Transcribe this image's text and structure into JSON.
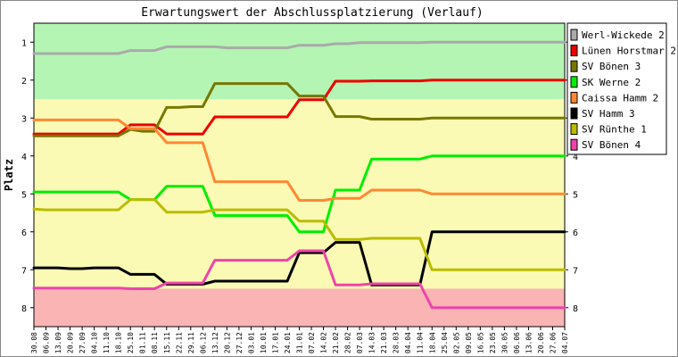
{
  "chart_data": {
    "type": "line",
    "title": "Erwartungswert der Abschlussplatzierung (Verlauf)",
    "ylabel": "Platz",
    "xlabel": "",
    "ylim": [
      0.5,
      8.5
    ],
    "y_inverted": true,
    "yticks": [
      1,
      2,
      3,
      4,
      5,
      6,
      7,
      8
    ],
    "grid": false,
    "legend_position": "right",
    "zones": [
      {
        "from": 0.5,
        "to": 2.5,
        "color": "#b4f5b4"
      },
      {
        "from": 2.5,
        "to": 7.5,
        "color": "#fafab4"
      },
      {
        "from": 7.5,
        "to": 8.5,
        "color": "#fab4b4"
      }
    ],
    "x": [
      "30.08",
      "06.09",
      "13.09",
      "20.09",
      "27.09",
      "04.10",
      "11.10",
      "18.10",
      "25.10",
      "01.11",
      "08.11",
      "15.11",
      "22.11",
      "29.11",
      "06.12",
      "13.12",
      "20.12",
      "27.12",
      "03.01",
      "10.01",
      "17.01",
      "24.01",
      "31.01",
      "07.02",
      "14.02",
      "21.02",
      "28.02",
      "07.03",
      "14.03",
      "21.03",
      "28.03",
      "04.04",
      "11.04",
      "18.04",
      "25.04",
      "02.05",
      "09.05",
      "16.05",
      "23.05",
      "30.05",
      "06.06",
      "13.06",
      "20.06",
      "27.06",
      "04.07"
    ],
    "series": [
      {
        "name": "Werl-Wickede 2",
        "color": "#aaaaaa",
        "values": [
          1.3,
          1.3,
          1.3,
          1.3,
          1.3,
          1.3,
          1.3,
          1.3,
          1.22,
          1.22,
          1.22,
          1.12,
          1.12,
          1.12,
          1.12,
          1.12,
          1.15,
          1.15,
          1.15,
          1.15,
          1.15,
          1.15,
          1.08,
          1.08,
          1.08,
          1.04,
          1.04,
          1.01,
          1.01,
          1.01,
          1.01,
          1.01,
          1.01,
          1.0,
          1.0,
          1.0,
          1.0,
          1.0,
          1.0,
          1.0,
          1.0,
          1.0,
          1.0,
          1.0,
          1.0
        ]
      },
      {
        "name": "Lünen Horstmar 2",
        "color": "#ee0000",
        "values": [
          3.42,
          3.42,
          3.42,
          3.42,
          3.42,
          3.42,
          3.42,
          3.42,
          3.18,
          3.18,
          3.18,
          3.42,
          3.42,
          3.42,
          3.42,
          2.97,
          2.97,
          2.97,
          2.97,
          2.97,
          2.97,
          2.97,
          2.52,
          2.52,
          2.52,
          2.03,
          2.03,
          2.03,
          2.02,
          2.02,
          2.02,
          2.02,
          2.02,
          2.0,
          2.0,
          2.0,
          2.0,
          2.0,
          2.0,
          2.0,
          2.0,
          2.0,
          2.0,
          2.0,
          2.0
        ]
      },
      {
        "name": "SV Bönen 3",
        "color": "#777700",
        "values": [
          3.47,
          3.47,
          3.47,
          3.47,
          3.47,
          3.47,
          3.47,
          3.47,
          3.3,
          3.35,
          3.35,
          2.72,
          2.72,
          2.7,
          2.7,
          2.09,
          2.09,
          2.09,
          2.09,
          2.09,
          2.09,
          2.09,
          2.42,
          2.42,
          2.42,
          2.96,
          2.96,
          2.96,
          3.03,
          3.03,
          3.03,
          3.03,
          3.03,
          3.0,
          3.0,
          3.0,
          3.0,
          3.0,
          3.0,
          3.0,
          3.0,
          3.0,
          3.0,
          3.0,
          3.0
        ]
      },
      {
        "name": "SK Werne 2",
        "color": "#00ee00",
        "values": [
          4.95,
          4.95,
          4.95,
          4.95,
          4.95,
          4.95,
          4.95,
          4.95,
          5.15,
          5.15,
          5.15,
          4.8,
          4.8,
          4.8,
          4.8,
          5.57,
          5.57,
          5.57,
          5.57,
          5.57,
          5.57,
          5.57,
          6.0,
          6.0,
          6.0,
          4.9,
          4.9,
          4.9,
          4.08,
          4.08,
          4.08,
          4.08,
          4.08,
          4.0,
          4.0,
          4.0,
          4.0,
          4.0,
          4.0,
          4.0,
          4.0,
          4.0,
          4.0,
          4.0,
          4.0
        ]
      },
      {
        "name": "Caissa Hamm 2",
        "color": "#ff8833",
        "values": [
          3.05,
          3.05,
          3.05,
          3.05,
          3.05,
          3.05,
          3.05,
          3.05,
          3.28,
          3.28,
          3.28,
          3.65,
          3.65,
          3.65,
          3.65,
          4.68,
          4.68,
          4.68,
          4.68,
          4.68,
          4.68,
          4.68,
          5.17,
          5.17,
          5.17,
          5.12,
          5.12,
          5.12,
          4.9,
          4.9,
          4.9,
          4.9,
          4.9,
          5.0,
          5.0,
          5.0,
          5.0,
          5.0,
          5.0,
          5.0,
          5.0,
          5.0,
          5.0,
          5.0,
          5.0
        ]
      },
      {
        "name": "SV Hamm 3",
        "color": "#000000",
        "values": [
          6.95,
          6.95,
          6.95,
          6.97,
          6.97,
          6.95,
          6.95,
          6.95,
          7.12,
          7.12,
          7.12,
          7.38,
          7.38,
          7.38,
          7.38,
          7.3,
          7.3,
          7.3,
          7.3,
          7.3,
          7.3,
          7.3,
          6.55,
          6.55,
          6.55,
          6.28,
          6.28,
          6.28,
          7.4,
          7.4,
          7.4,
          7.4,
          7.4,
          6.0,
          6.0,
          6.0,
          6.0,
          6.0,
          6.0,
          6.0,
          6.0,
          6.0,
          6.0,
          6.0,
          6.0
        ]
      },
      {
        "name": "SV Rünthe 1",
        "color": "#bbbb00",
        "values": [
          5.4,
          5.42,
          5.42,
          5.42,
          5.42,
          5.42,
          5.42,
          5.42,
          5.15,
          5.15,
          5.15,
          5.48,
          5.48,
          5.48,
          5.48,
          5.42,
          5.42,
          5.42,
          5.42,
          5.42,
          5.42,
          5.42,
          5.72,
          5.72,
          5.72,
          6.2,
          6.2,
          6.2,
          6.17,
          6.17,
          6.17,
          6.17,
          6.17,
          7.0,
          7.0,
          7.0,
          7.0,
          7.0,
          7.0,
          7.0,
          7.0,
          7.0,
          7.0,
          7.0,
          7.0
        ]
      },
      {
        "name": "SV Bönen 4",
        "color": "#ee44aa",
        "values": [
          7.48,
          7.48,
          7.48,
          7.48,
          7.48,
          7.48,
          7.48,
          7.48,
          7.5,
          7.5,
          7.5,
          7.35,
          7.35,
          7.35,
          7.35,
          6.75,
          6.75,
          6.75,
          6.75,
          6.75,
          6.75,
          6.75,
          6.5,
          6.5,
          6.5,
          7.4,
          7.4,
          7.4,
          7.37,
          7.37,
          7.37,
          7.37,
          7.37,
          8.0,
          8.0,
          8.0,
          8.0,
          8.0,
          8.0,
          8.0,
          8.0,
          8.0,
          8.0,
          8.0,
          8.0
        ]
      }
    ]
  }
}
